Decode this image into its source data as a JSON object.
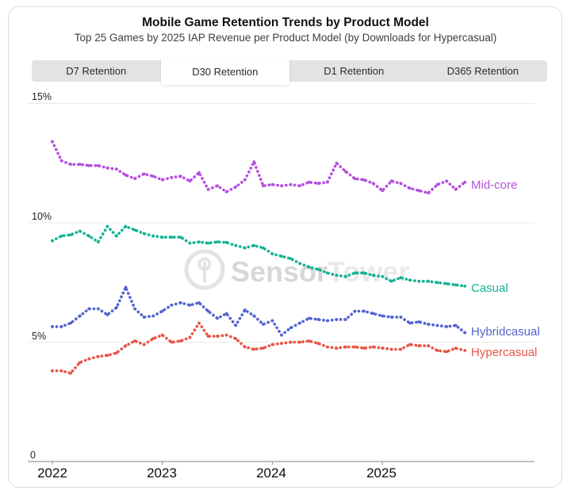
{
  "header": {
    "title": "Mobile Game Retention Trends by Product Model",
    "subtitle": "Top 25 Games by 2025 IAP Revenue per Product Model (by Downloads for Hypercasual)"
  },
  "tabs": [
    {
      "label": "D7 Retention",
      "active": false
    },
    {
      "label": "D30 Retention",
      "active": true
    },
    {
      "label": "D1 Retention",
      "active": false
    },
    {
      "label": "D365 Retention",
      "active": false
    }
  ],
  "watermark": {
    "part1": "Sensor",
    "part2": "Tower"
  },
  "chart_data": {
    "type": "line",
    "title": "Mobile Game Retention Trends by Product Model",
    "subtitle": "Top 25 Games by 2025 IAP Revenue per Product Model (by Downloads for Hypercasual)",
    "metric": "D30 Retention",
    "x_axis": {
      "unit": "month",
      "start": "2022-01",
      "end": "2025-10",
      "year_labels": [
        "2022",
        "2023",
        "2024",
        "2025"
      ]
    },
    "y_axis": {
      "unit": "%",
      "ylim": [
        0,
        15
      ],
      "tick_values": [
        15,
        10,
        5,
        0
      ],
      "tick_labels": [
        "15%",
        "10%",
        "5%",
        "0"
      ],
      "grid": true
    },
    "legend_position": "end-of-line-right",
    "colors": {
      "grid": "#eaeaea",
      "axis": "#9a9a9a",
      "watermark": "#e3e3e3"
    },
    "series": [
      {
        "name": "Mid-core",
        "color": "#b44fe0",
        "values": [
          13.4,
          12.6,
          12.45,
          12.45,
          12.4,
          12.4,
          12.3,
          12.25,
          12.0,
          11.85,
          12.05,
          11.95,
          11.8,
          11.9,
          11.95,
          11.75,
          12.1,
          11.4,
          11.55,
          11.3,
          11.5,
          11.8,
          12.55,
          11.55,
          11.6,
          11.55,
          11.6,
          11.55,
          11.7,
          11.65,
          11.7,
          12.5,
          12.15,
          11.85,
          11.8,
          11.65,
          11.35,
          11.75,
          11.65,
          11.45,
          11.35,
          11.25,
          11.6,
          11.75,
          11.4,
          11.7
        ]
      },
      {
        "name": "Casual",
        "color": "#12b394",
        "values": [
          9.25,
          9.45,
          9.5,
          9.65,
          9.45,
          9.2,
          9.85,
          9.45,
          9.85,
          9.7,
          9.55,
          9.45,
          9.4,
          9.4,
          9.4,
          9.15,
          9.2,
          9.15,
          9.2,
          9.18,
          9.05,
          8.95,
          9.05,
          8.95,
          8.7,
          8.6,
          8.5,
          8.3,
          8.15,
          8.05,
          7.9,
          7.8,
          7.75,
          7.9,
          7.9,
          7.8,
          7.75,
          7.55,
          7.7,
          7.6,
          7.55,
          7.55,
          7.5,
          7.45,
          7.4,
          7.35
        ]
      },
      {
        "name": "Hybridcasual",
        "color": "#5264cf",
        "values": [
          5.65,
          5.65,
          5.8,
          6.1,
          6.4,
          6.4,
          6.15,
          6.45,
          7.3,
          6.4,
          6.05,
          6.1,
          6.3,
          6.55,
          6.65,
          6.55,
          6.65,
          6.3,
          6.0,
          6.2,
          5.7,
          6.35,
          6.1,
          5.75,
          5.9,
          5.3,
          5.6,
          5.8,
          6.0,
          5.95,
          5.9,
          5.95,
          5.95,
          6.3,
          6.3,
          6.2,
          6.1,
          6.05,
          6.05,
          5.8,
          5.85,
          5.75,
          5.7,
          5.65,
          5.7,
          5.4
        ]
      },
      {
        "name": "Hypercasual",
        "color": "#e85547",
        "values": [
          3.8,
          3.8,
          3.7,
          4.15,
          4.3,
          4.4,
          4.45,
          4.55,
          4.85,
          5.05,
          4.9,
          5.15,
          5.3,
          5.0,
          5.05,
          5.2,
          5.8,
          5.25,
          5.25,
          5.3,
          5.15,
          4.8,
          4.7,
          4.75,
          4.9,
          4.95,
          5.0,
          5.0,
          5.05,
          4.95,
          4.8,
          4.75,
          4.8,
          4.8,
          4.75,
          4.8,
          4.75,
          4.7,
          4.7,
          4.9,
          4.85,
          4.85,
          4.65,
          4.6,
          4.75,
          4.65
        ]
      }
    ]
  }
}
